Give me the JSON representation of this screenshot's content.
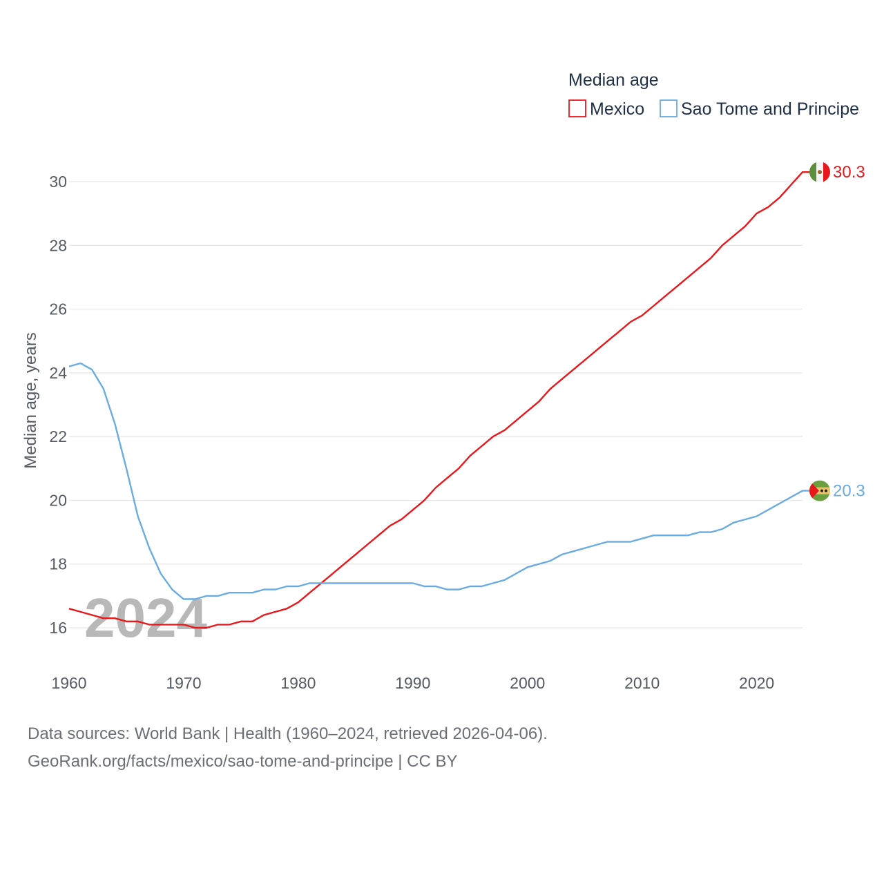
{
  "chart_data": {
    "type": "line",
    "title": "",
    "legend_title": "Median age",
    "ylabel": "Median age, years",
    "xlabel": "",
    "xlim": [
      1960,
      2024
    ],
    "ylim": [
      15,
      31
    ],
    "x_ticks": [
      1960,
      1970,
      1980,
      1990,
      2000,
      2010,
      2020
    ],
    "y_ticks": [
      16,
      18,
      20,
      22,
      24,
      26,
      28,
      30
    ],
    "watermark_year": "2024",
    "x": [
      1960,
      1961,
      1962,
      1963,
      1964,
      1965,
      1966,
      1967,
      1968,
      1969,
      1970,
      1971,
      1972,
      1973,
      1974,
      1975,
      1976,
      1977,
      1978,
      1979,
      1980,
      1981,
      1982,
      1983,
      1984,
      1985,
      1986,
      1987,
      1988,
      1989,
      1990,
      1991,
      1992,
      1993,
      1994,
      1995,
      1996,
      1997,
      1998,
      1999,
      2000,
      2001,
      2002,
      2003,
      2004,
      2005,
      2006,
      2007,
      2008,
      2009,
      2010,
      2011,
      2012,
      2013,
      2014,
      2015,
      2016,
      2017,
      2018,
      2019,
      2020,
      2021,
      2022,
      2023,
      2024
    ],
    "series": [
      {
        "name": "Mexico",
        "color": "#e8171b",
        "end_label": "30.3",
        "values": [
          16.6,
          16.5,
          16.4,
          16.3,
          16.3,
          16.2,
          16.2,
          16.1,
          16.1,
          16.1,
          16.1,
          16.0,
          16.0,
          16.1,
          16.1,
          16.2,
          16.2,
          16.4,
          16.5,
          16.6,
          16.8,
          17.1,
          17.4,
          17.7,
          18.0,
          18.3,
          18.6,
          18.9,
          19.2,
          19.4,
          19.7,
          20.0,
          20.4,
          20.7,
          21.0,
          21.4,
          21.7,
          22.0,
          22.2,
          22.5,
          22.8,
          23.1,
          23.5,
          23.8,
          24.1,
          24.4,
          24.7,
          25.0,
          25.3,
          25.6,
          25.8,
          26.1,
          26.4,
          26.7,
          27.0,
          27.3,
          27.6,
          28.0,
          28.3,
          28.6,
          29.0,
          29.2,
          29.5,
          29.9,
          30.3
        ]
      },
      {
        "name": "Sao Tome and Principe",
        "color": "#6aabe1",
        "end_label": "20.3",
        "values": [
          24.2,
          24.3,
          24.1,
          23.5,
          22.4,
          21.0,
          19.5,
          18.5,
          17.7,
          17.2,
          16.9,
          16.9,
          17.0,
          17.0,
          17.1,
          17.1,
          17.1,
          17.2,
          17.2,
          17.3,
          17.3,
          17.4,
          17.4,
          17.4,
          17.4,
          17.4,
          17.4,
          17.4,
          17.4,
          17.4,
          17.4,
          17.3,
          17.3,
          17.2,
          17.2,
          17.3,
          17.3,
          17.4,
          17.5,
          17.7,
          17.9,
          18.0,
          18.1,
          18.3,
          18.4,
          18.5,
          18.6,
          18.7,
          18.7,
          18.7,
          18.8,
          18.9,
          18.9,
          18.9,
          18.9,
          19.0,
          19.0,
          19.1,
          19.3,
          19.4,
          19.5,
          19.7,
          19.9,
          20.1,
          20.3
        ]
      }
    ]
  },
  "footer": {
    "line1": "Data sources: World Bank | Health (1960–2024, retrieved 2026-04-06).",
    "line2": "GeoRank.org/facts/mexico/sao-tome-and-principe | CC BY"
  }
}
